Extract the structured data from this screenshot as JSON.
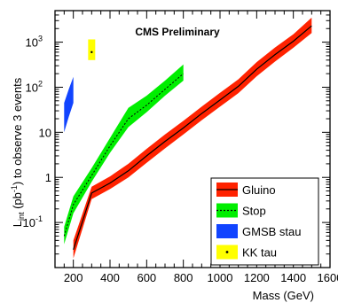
{
  "chart_data": {
    "type": "area",
    "title": "CMS Preliminary",
    "xlabel": "Mass (GeV)",
    "ylabel_main": "L",
    "ylabel_sub": "int",
    "ylabel_unit_open": " (pb",
    "ylabel_unit_exp": "-1",
    "ylabel_tail": ") to observe 3 events",
    "x_scale": "linear",
    "y_scale": "log",
    "xlim": [
      100,
      1600
    ],
    "ylim": [
      0.01,
      5000
    ],
    "x_ticks": [
      200,
      400,
      600,
      800,
      1000,
      1200,
      1400,
      1600
    ],
    "x_tick_labels": [
      "200",
      "400",
      "600",
      "800",
      "1000",
      "1200",
      "1400",
      "1600"
    ],
    "y_major_ticks": [
      0.1,
      1,
      10,
      100,
      1000
    ],
    "y_tick_labels": [
      {
        "value": 0.1,
        "base": "10",
        "exp": "-1"
      },
      {
        "value": 1,
        "base": "1",
        "exp": ""
      },
      {
        "value": 10,
        "base": "10",
        "exp": ""
      },
      {
        "value": 100,
        "base": "10",
        "exp": "2"
      },
      {
        "value": 1000,
        "base": "10",
        "exp": "3"
      }
    ],
    "legend_position": "bottom-right",
    "series": [
      {
        "name": "Gluino",
        "fill": "#ff2200",
        "line": "#000000",
        "line_style": "solid",
        "x": [
          200,
          300,
          400,
          500,
          600,
          700,
          800,
          900,
          1000,
          1100,
          1200,
          1300,
          1400,
          1500
        ],
        "central": [
          0.025,
          0.45,
          0.75,
          1.4,
          3.0,
          6.3,
          12.5,
          26,
          52,
          105,
          250,
          530,
          1050,
          2300
        ],
        "lower": [
          0.016,
          0.33,
          0.55,
          1.0,
          2.1,
          4.4,
          9.0,
          18.5,
          37,
          74,
          175,
          370,
          750,
          1600
        ],
        "upper": [
          0.04,
          0.62,
          1.05,
          2.0,
          4.3,
          9.0,
          18,
          37,
          75,
          150,
          360,
          760,
          1500,
          3500
        ]
      },
      {
        "name": "Stop",
        "fill": "#00ee00",
        "line": "#000000",
        "line_style": "dotted",
        "x": [
          150,
          200,
          300,
          400,
          500,
          600,
          700,
          800
        ],
        "central": [
          0.05,
          0.25,
          1.1,
          5.0,
          20,
          40,
          90,
          200
        ],
        "lower": [
          0.033,
          0.16,
          0.8,
          3.5,
          13,
          28,
          65,
          140
        ],
        "upper": [
          0.08,
          0.38,
          1.6,
          7.5,
          35,
          65,
          140,
          320
        ]
      },
      {
        "name": "GMSB stau",
        "fill": "#1144ff",
        "line": "#000000",
        "line_style": "none",
        "x": [
          150,
          175,
          200
        ],
        "central": [
          23,
          48,
          95
        ],
        "lower": [
          10,
          22,
          45
        ],
        "upper": [
          45,
          90,
          170
        ]
      },
      {
        "name": "KK tau",
        "fill": "#ffff00",
        "line": "#000000",
        "line_style": "none",
        "x": [
          300
        ],
        "central": [
          600
        ],
        "lower": [
          400
        ],
        "upper": [
          1150
        ]
      }
    ]
  }
}
